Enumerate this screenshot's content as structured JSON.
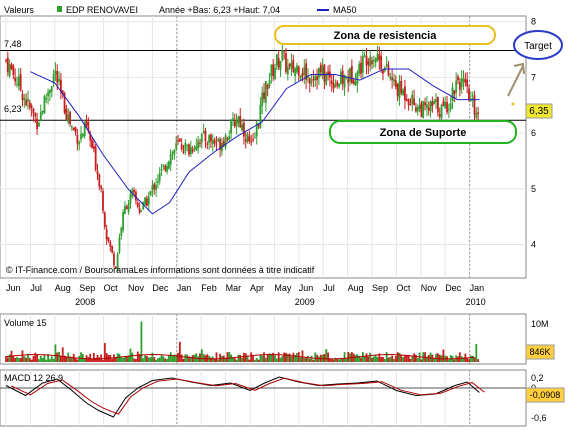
{
  "header": {
    "left": "Valeurs",
    "symbol": "EDP RENOVAVEI",
    "range": "Année +Bas: 6,23 +Haut: 7,04",
    "ma_label": "MA50"
  },
  "labels": {
    "level_high": "7,48",
    "level_low": "6,23",
    "last_price": "6,35",
    "resistance": "Zona de resistencia",
    "support": "Zona de Suporte",
    "target": "Target",
    "credit": "© IT-Finance.com / BoursoramaLes informations sont données à titre indicatif",
    "volume_label": "Volume 15",
    "volume_max": "10M",
    "volume_last": "846K",
    "macd_label": "MACD 12 26 9",
    "macd_last": "-0,0908"
  },
  "colors": {
    "up": "#2e9e2e",
    "down": "#c81e1e",
    "ma": "#2020c0",
    "resistance_box": "#e8c020",
    "support_box": "#1eb41e",
    "target_ellipse": "#2a3cc8",
    "price_box": "#f0e830",
    "macd_box": "#ffcf40",
    "arrow": "#a09070"
  },
  "chart_data": [
    {
      "type": "candlestick",
      "title": "EDP RENOVAVEI",
      "y_ticks": [
        4,
        5,
        6,
        7,
        8
      ],
      "ylim": [
        3.4,
        8.1
      ],
      "x_months": [
        "Jun",
        "Jul",
        "Aug",
        "Sep",
        "Oct",
        "Nov",
        "Dec",
        "Jan",
        "Feb",
        "Mar",
        "Apr",
        "May",
        "Jun",
        "Jul",
        "Aug",
        "Sep",
        "Oct",
        "Nov",
        "Dec",
        "Jan"
      ],
      "x_years": [
        {
          "label": "2008",
          "month_index": 3
        },
        {
          "label": "2009",
          "month_index": 12
        },
        {
          "label": "2010",
          "month_index": 19
        }
      ],
      "reference_lines": [
        7.48,
        6.23
      ],
      "close_path": [
        {
          "m": 0.0,
          "v": 7.3
        },
        {
          "m": 0.5,
          "v": 6.9
        },
        {
          "m": 0.9,
          "v": 6.5
        },
        {
          "m": 1.3,
          "v": 6.2
        },
        {
          "m": 1.6,
          "v": 6.6
        },
        {
          "m": 2.0,
          "v": 7.1
        },
        {
          "m": 2.3,
          "v": 6.6
        },
        {
          "m": 2.7,
          "v": 6.1
        },
        {
          "m": 3.0,
          "v": 5.9
        },
        {
          "m": 3.3,
          "v": 6.1
        },
        {
          "m": 3.6,
          "v": 5.6
        },
        {
          "m": 3.9,
          "v": 5.0
        },
        {
          "m": 4.1,
          "v": 4.2
        },
        {
          "m": 4.3,
          "v": 3.9
        },
        {
          "m": 4.5,
          "v": 3.6
        },
        {
          "m": 4.7,
          "v": 4.3
        },
        {
          "m": 4.9,
          "v": 4.7
        },
        {
          "m": 5.2,
          "v": 4.9
        },
        {
          "m": 5.5,
          "v": 4.6
        },
        {
          "m": 5.8,
          "v": 4.8
        },
        {
          "m": 6.1,
          "v": 5.1
        },
        {
          "m": 6.4,
          "v": 5.3
        },
        {
          "m": 6.7,
          "v": 5.6
        },
        {
          "m": 7.1,
          "v": 5.8
        },
        {
          "m": 7.5,
          "v": 5.7
        },
        {
          "m": 7.9,
          "v": 5.9
        },
        {
          "m": 8.3,
          "v": 5.9
        },
        {
          "m": 8.7,
          "v": 5.8
        },
        {
          "m": 9.1,
          "v": 6.0
        },
        {
          "m": 9.5,
          "v": 6.3
        },
        {
          "m": 9.8,
          "v": 6.0
        },
        {
          "m": 10.1,
          "v": 5.7
        },
        {
          "m": 10.4,
          "v": 6.4
        },
        {
          "m": 10.7,
          "v": 6.9
        },
        {
          "m": 11.0,
          "v": 7.2
        },
        {
          "m": 11.3,
          "v": 7.4
        },
        {
          "m": 11.6,
          "v": 7.1
        },
        {
          "m": 12.0,
          "v": 7.2
        },
        {
          "m": 12.4,
          "v": 7.0
        },
        {
          "m": 12.8,
          "v": 7.1
        },
        {
          "m": 13.2,
          "v": 7.0
        },
        {
          "m": 13.6,
          "v": 6.9
        },
        {
          "m": 14.0,
          "v": 7.0
        },
        {
          "m": 14.4,
          "v": 7.1
        },
        {
          "m": 14.8,
          "v": 7.4
        },
        {
          "m": 15.2,
          "v": 7.4
        },
        {
          "m": 15.6,
          "v": 7.1
        },
        {
          "m": 16.0,
          "v": 6.8
        },
        {
          "m": 16.4,
          "v": 6.7
        },
        {
          "m": 16.8,
          "v": 6.5
        },
        {
          "m": 17.2,
          "v": 6.4
        },
        {
          "m": 17.6,
          "v": 6.5
        },
        {
          "m": 17.9,
          "v": 6.4
        },
        {
          "m": 18.2,
          "v": 6.6
        },
        {
          "m": 18.5,
          "v": 7.0
        },
        {
          "m": 18.8,
          "v": 6.8
        },
        {
          "m": 19.1,
          "v": 6.5
        },
        {
          "m": 19.4,
          "v": 6.35
        }
      ],
      "ma50": [
        {
          "m": 1.0,
          "v": 7.1
        },
        {
          "m": 2.0,
          "v": 6.9
        },
        {
          "m": 3.0,
          "v": 6.3
        },
        {
          "m": 4.0,
          "v": 5.6
        },
        {
          "m": 5.0,
          "v": 5.0
        },
        {
          "m": 6.0,
          "v": 4.55
        },
        {
          "m": 6.7,
          "v": 4.75
        },
        {
          "m": 7.5,
          "v": 5.3
        },
        {
          "m": 8.5,
          "v": 5.65
        },
        {
          "m": 9.5,
          "v": 5.95
        },
        {
          "m": 10.5,
          "v": 6.2
        },
        {
          "m": 11.5,
          "v": 6.8
        },
        {
          "m": 12.5,
          "v": 7.05
        },
        {
          "m": 13.5,
          "v": 7.05
        },
        {
          "m": 14.5,
          "v": 6.95
        },
        {
          "m": 15.5,
          "v": 7.15
        },
        {
          "m": 16.5,
          "v": 7.15
        },
        {
          "m": 17.5,
          "v": 6.85
        },
        {
          "m": 18.5,
          "v": 6.6
        },
        {
          "m": 19.4,
          "v": 6.6
        }
      ]
    },
    {
      "type": "bar",
      "title": "Volume 15",
      "y_ticks": [
        "10M",
        "846K"
      ],
      "note": "mostly small bars with one spike near Nov 2008"
    },
    {
      "type": "line",
      "title": "MACD 12 26 9",
      "y_ticks": [
        0.2,
        0,
        -0.6
      ],
      "last_value": -0.0908,
      "macd": [
        {
          "m": 0,
          "v": 0.05
        },
        {
          "m": 0.8,
          "v": -0.15
        },
        {
          "m": 1.5,
          "v": 0.1
        },
        {
          "m": 2.1,
          "v": 0.18
        },
        {
          "m": 2.7,
          "v": -0.05
        },
        {
          "m": 3.3,
          "v": -0.3
        },
        {
          "m": 3.8,
          "v": -0.45
        },
        {
          "m": 4.4,
          "v": -0.58
        },
        {
          "m": 4.9,
          "v": -0.2
        },
        {
          "m": 5.4,
          "v": 0.0
        },
        {
          "m": 6.0,
          "v": 0.15
        },
        {
          "m": 6.8,
          "v": 0.2
        },
        {
          "m": 7.6,
          "v": 0.12
        },
        {
          "m": 8.4,
          "v": 0.05
        },
        {
          "m": 9.2,
          "v": 0.1
        },
        {
          "m": 10.0,
          "v": -0.05
        },
        {
          "m": 10.6,
          "v": 0.1
        },
        {
          "m": 11.2,
          "v": 0.22
        },
        {
          "m": 12.0,
          "v": 0.12
        },
        {
          "m": 12.8,
          "v": 0.05
        },
        {
          "m": 13.6,
          "v": 0.08
        },
        {
          "m": 14.4,
          "v": 0.1
        },
        {
          "m": 15.2,
          "v": 0.14
        },
        {
          "m": 16.0,
          "v": -0.05
        },
        {
          "m": 16.8,
          "v": -0.15
        },
        {
          "m": 17.6,
          "v": -0.12
        },
        {
          "m": 18.4,
          "v": 0.05
        },
        {
          "m": 18.9,
          "v": 0.12
        },
        {
          "m": 19.4,
          "v": -0.09
        }
      ]
    }
  ]
}
